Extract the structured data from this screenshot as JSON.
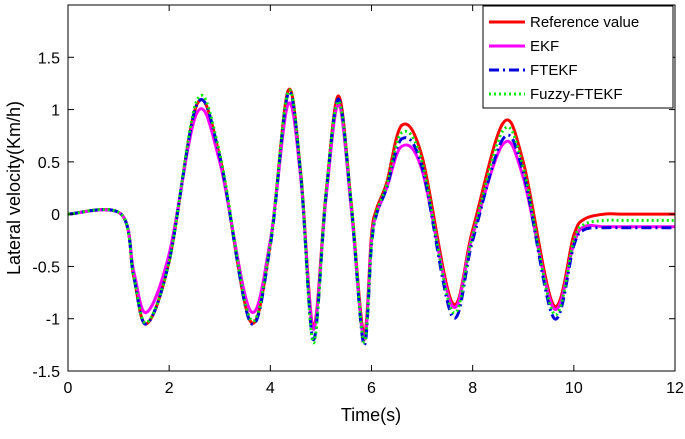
{
  "chart_data": {
    "type": "line",
    "xlabel": "Time(s)",
    "ylabel": "Lateral velocity(Km/h)",
    "xlim": [
      0,
      12
    ],
    "ylim": [
      -1.5,
      2
    ],
    "xticks": [
      0,
      2,
      4,
      6,
      8,
      10,
      12
    ],
    "yticks": [
      -1.5,
      -1,
      -0.5,
      0,
      0.5,
      1,
      1.5
    ],
    "xtick_labels": [
      "0",
      "2",
      "4",
      "6",
      "8",
      "10",
      "12"
    ],
    "ytick_labels": [
      "-1.5",
      "-1",
      "-0.5",
      "0",
      "0.5",
      "1",
      "1.5"
    ],
    "grid": false,
    "legend_position": "top-right",
    "series": [
      {
        "name": "Reference value",
        "color": "#ff0000",
        "dash": "solid",
        "x": [
          0,
          1.05,
          1.3,
          1.55,
          2.0,
          2.55,
          3.0,
          3.6,
          4.0,
          4.35,
          4.6,
          4.85,
          5.1,
          5.35,
          5.6,
          5.85,
          6.0,
          6.1,
          6.3,
          6.6,
          7.0,
          7.6,
          8.0,
          8.6,
          9.0,
          9.6,
          10.0,
          10.2,
          10.6,
          11.0,
          12.0
        ],
        "y": [
          0,
          0,
          -0.6,
          -1.05,
          -0.45,
          1.05,
          0.55,
          -1.02,
          -0.28,
          1.18,
          0.4,
          -1.08,
          0.2,
          1.13,
          0.1,
          -1.15,
          -0.2,
          0.05,
          0.3,
          0.85,
          0.55,
          -0.85,
          -0.15,
          0.87,
          0.5,
          -0.87,
          -0.2,
          -0.05,
          0.0,
          0.0,
          0.0
        ]
      },
      {
        "name": "EKF",
        "color": "#ff00ff",
        "dash": "solid",
        "x": [
          0,
          1.05,
          1.3,
          1.55,
          2.0,
          2.55,
          3.0,
          3.6,
          4.0,
          4.35,
          4.6,
          4.85,
          5.1,
          5.35,
          5.6,
          5.85,
          6.0,
          6.1,
          6.3,
          6.6,
          7.0,
          7.6,
          8.0,
          8.6,
          9.0,
          9.6,
          10.0,
          10.2,
          10.6,
          11.0,
          12.0
        ],
        "y": [
          0,
          0,
          -0.55,
          -0.94,
          -0.38,
          0.97,
          0.5,
          -0.92,
          -0.25,
          1.05,
          0.35,
          -1.1,
          0.15,
          1.05,
          0.05,
          -1.2,
          -0.25,
          0.0,
          0.25,
          0.65,
          0.42,
          -0.88,
          -0.2,
          0.67,
          0.35,
          -0.9,
          -0.28,
          -0.12,
          -0.12,
          -0.12,
          -0.12
        ]
      },
      {
        "name": "FTEKF",
        "color": "#0000dd",
        "dash": "dashdot",
        "x": [
          0,
          1.05,
          1.3,
          1.55,
          2.0,
          2.55,
          3.0,
          3.6,
          4.0,
          4.35,
          4.6,
          4.85,
          5.1,
          5.35,
          5.6,
          5.85,
          6.0,
          6.1,
          6.3,
          6.6,
          7.0,
          7.6,
          8.0,
          8.6,
          9.0,
          9.6,
          10.0,
          10.2,
          10.6,
          11.0,
          12.0
        ],
        "y": [
          0,
          0,
          -0.6,
          -1.05,
          -0.45,
          1.05,
          0.55,
          -1.03,
          -0.3,
          1.15,
          0.38,
          -1.2,
          0.18,
          1.1,
          0.08,
          -1.25,
          -0.3,
          0.0,
          0.25,
          0.72,
          0.45,
          -0.98,
          -0.25,
          0.72,
          0.4,
          -0.99,
          -0.3,
          -0.15,
          -0.13,
          -0.13,
          -0.13
        ]
      },
      {
        "name": "Fuzzy-FTEKF",
        "color": "#00ee00",
        "dash": "dotted",
        "x": [
          0,
          1.05,
          1.3,
          1.55,
          2.0,
          2.55,
          3.0,
          3.6,
          4.0,
          4.35,
          4.6,
          4.85,
          5.1,
          5.35,
          5.6,
          5.85,
          6.0,
          6.1,
          6.3,
          6.6,
          7.0,
          7.6,
          8.0,
          8.6,
          9.0,
          9.6,
          10.0,
          10.2,
          10.6,
          11.0,
          12.0
        ],
        "y": [
          0,
          0,
          -0.6,
          -1.04,
          -0.45,
          1.09,
          0.58,
          -1.0,
          -0.27,
          1.17,
          0.4,
          -1.23,
          0.2,
          1.08,
          0.1,
          -1.22,
          -0.28,
          0.02,
          0.28,
          0.78,
          0.5,
          -0.93,
          -0.2,
          0.8,
          0.45,
          -0.95,
          -0.25,
          -0.1,
          -0.06,
          -0.06,
          -0.06
        ]
      }
    ]
  }
}
